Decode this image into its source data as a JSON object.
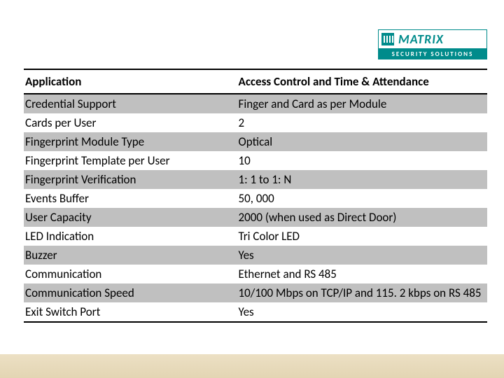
{
  "logo": {
    "brand": "MATRIX",
    "tagline": "SECURITY SOLUTIONS"
  },
  "table": {
    "type": "table",
    "columns": [
      "Application",
      "Access Control and Time & Attendance"
    ],
    "row_colors": {
      "odd": "#c0c0c0",
      "even": "#ffffff"
    },
    "border_color": "#000000",
    "font_size": 17,
    "header_font_weight": 700,
    "rows": [
      [
        "Credential Support",
        "  Finger and Card as per Module"
      ],
      [
        "Cards per User",
        "2"
      ],
      [
        "Fingerprint Module Type",
        "Optical"
      ],
      [
        "Fingerprint Template per User",
        "10"
      ],
      [
        "Fingerprint Verification",
        "1: 1 to 1: N"
      ],
      [
        "Events Buffer",
        "50, 000"
      ],
      [
        "User Capacity",
        "2000 (when used as Direct Door)"
      ],
      [
        "LED Indication",
        "Tri Color LED"
      ],
      [
        "Buzzer",
        "Yes"
      ],
      [
        "Communication",
        "Ethernet and RS 485"
      ],
      [
        "Communication Speed",
        "10/100 Mbps on TCP/IP and 115. 2 kbps on RS 485"
      ],
      [
        "Exit Switch Port",
        "Yes"
      ]
    ]
  },
  "colors": {
    "brand_teal": "#008b8b",
    "footer_top": "#ece0c4",
    "footer_bottom": "#e3d5b3",
    "background": "#ffffff",
    "text": "#000000"
  }
}
